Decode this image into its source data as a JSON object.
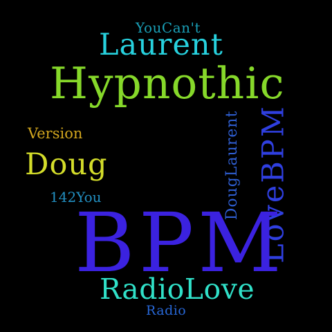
{
  "words": {
    "youcant": {
      "text": "YouCan't",
      "color": "#1aa0b8"
    },
    "laurent": {
      "text": "Laurent",
      "color": "#27d1de"
    },
    "hypnothic": {
      "text": "Hypnothic",
      "color": "#86d82a"
    },
    "version": {
      "text": "Version",
      "color": "#d2a61e"
    },
    "doug": {
      "text": "Doug",
      "color": "#d4dd2a"
    },
    "onefourtwo": {
      "text": "142You",
      "color": "#2290c2"
    },
    "douglaurent": {
      "text": "DougLaurent",
      "color": "#2f5fd3"
    },
    "lovebpm": {
      "text": "LoveBPM",
      "color": "#2f3fe0"
    },
    "bpm": {
      "text": "BPM",
      "color": "#3b22e0"
    },
    "radiolove": {
      "text": "RadioLove",
      "color": "#30e0c8"
    },
    "radio": {
      "text": "Radio",
      "color": "#2868d8"
    }
  },
  "background": "#000000"
}
